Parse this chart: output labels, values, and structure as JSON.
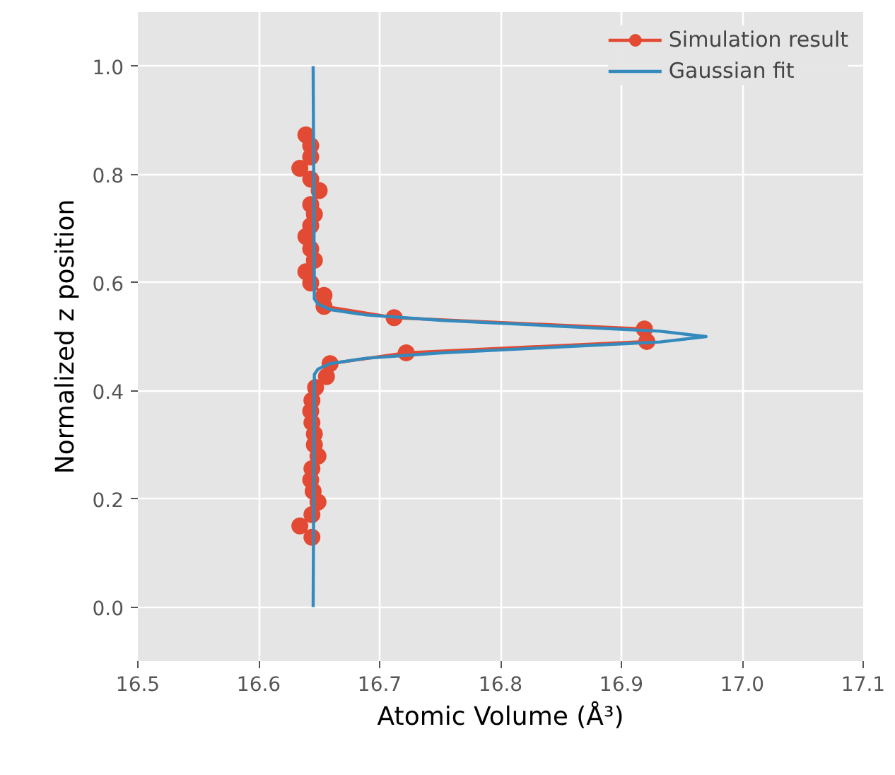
{
  "chart_data": {
    "type": "line",
    "xlabel": "Atomic Volume (Å³)",
    "ylabel": "Normalized z position",
    "xlim": [
      16.5,
      17.1
    ],
    "xticks": [
      {
        "value": 16.5,
        "label": "16.5"
      },
      {
        "value": 16.6,
        "label": "16.6"
      },
      {
        "value": 16.7,
        "label": "16.7"
      },
      {
        "value": 16.8,
        "label": "16.8"
      },
      {
        "value": 16.9,
        "label": "16.9"
      },
      {
        "value": 17.0,
        "label": "17.0"
      },
      {
        "value": 17.1,
        "label": "17.1"
      }
    ],
    "ylim": [
      -0.1,
      1.1
    ],
    "yticks": [
      {
        "value": 0.0,
        "label": "0.0"
      },
      {
        "value": 0.2,
        "label": "0.2"
      },
      {
        "value": 0.4,
        "label": "0.4"
      },
      {
        "value": 0.6,
        "label": "0.6"
      },
      {
        "value": 0.8,
        "label": "0.8"
      },
      {
        "value": 1.0,
        "label": "1.0"
      }
    ],
    "grid": true,
    "legend": "top right",
    "series": [
      {
        "name": "Simulation result",
        "color": "#e24a33",
        "marker": "circle",
        "x": [
          16.639,
          16.643,
          16.643,
          16.634,
          16.643,
          16.65,
          16.643,
          16.646,
          16.643,
          16.639,
          16.643,
          16.646,
          16.639,
          16.643,
          16.654,
          16.654,
          16.712,
          16.919,
          16.921,
          16.722,
          16.659,
          16.656,
          16.647,
          16.644,
          16.643,
          16.644,
          16.646,
          16.646,
          16.649,
          16.644,
          16.643,
          16.645,
          16.649,
          16.644,
          16.634,
          16.644
        ],
        "values": [
          0.873,
          0.853,
          0.832,
          0.811,
          0.791,
          0.77,
          0.744,
          0.726,
          0.705,
          0.685,
          0.662,
          0.641,
          0.62,
          0.599,
          0.576,
          0.556,
          0.535,
          0.514,
          0.491,
          0.47,
          0.45,
          0.426,
          0.406,
          0.382,
          0.362,
          0.341,
          0.32,
          0.3,
          0.279,
          0.256,
          0.235,
          0.214,
          0.194,
          0.171,
          0.15,
          0.129
        ]
      },
      {
        "name": "Gaussian fit",
        "color": "#348abd",
        "marker": "none",
        "x": [
          16.645,
          16.646,
          16.649,
          16.659,
          16.689,
          16.751,
          16.842,
          16.932,
          16.97,
          16.932,
          16.842,
          16.751,
          16.689,
          16.659,
          16.649,
          16.646,
          16.645
        ],
        "values": [
          0.0,
          0.43,
          0.44,
          0.45,
          0.46,
          0.47,
          0.48,
          0.49,
          0.5,
          0.51,
          0.52,
          0.53,
          0.54,
          0.55,
          0.56,
          0.57,
          1.0
        ]
      }
    ]
  }
}
